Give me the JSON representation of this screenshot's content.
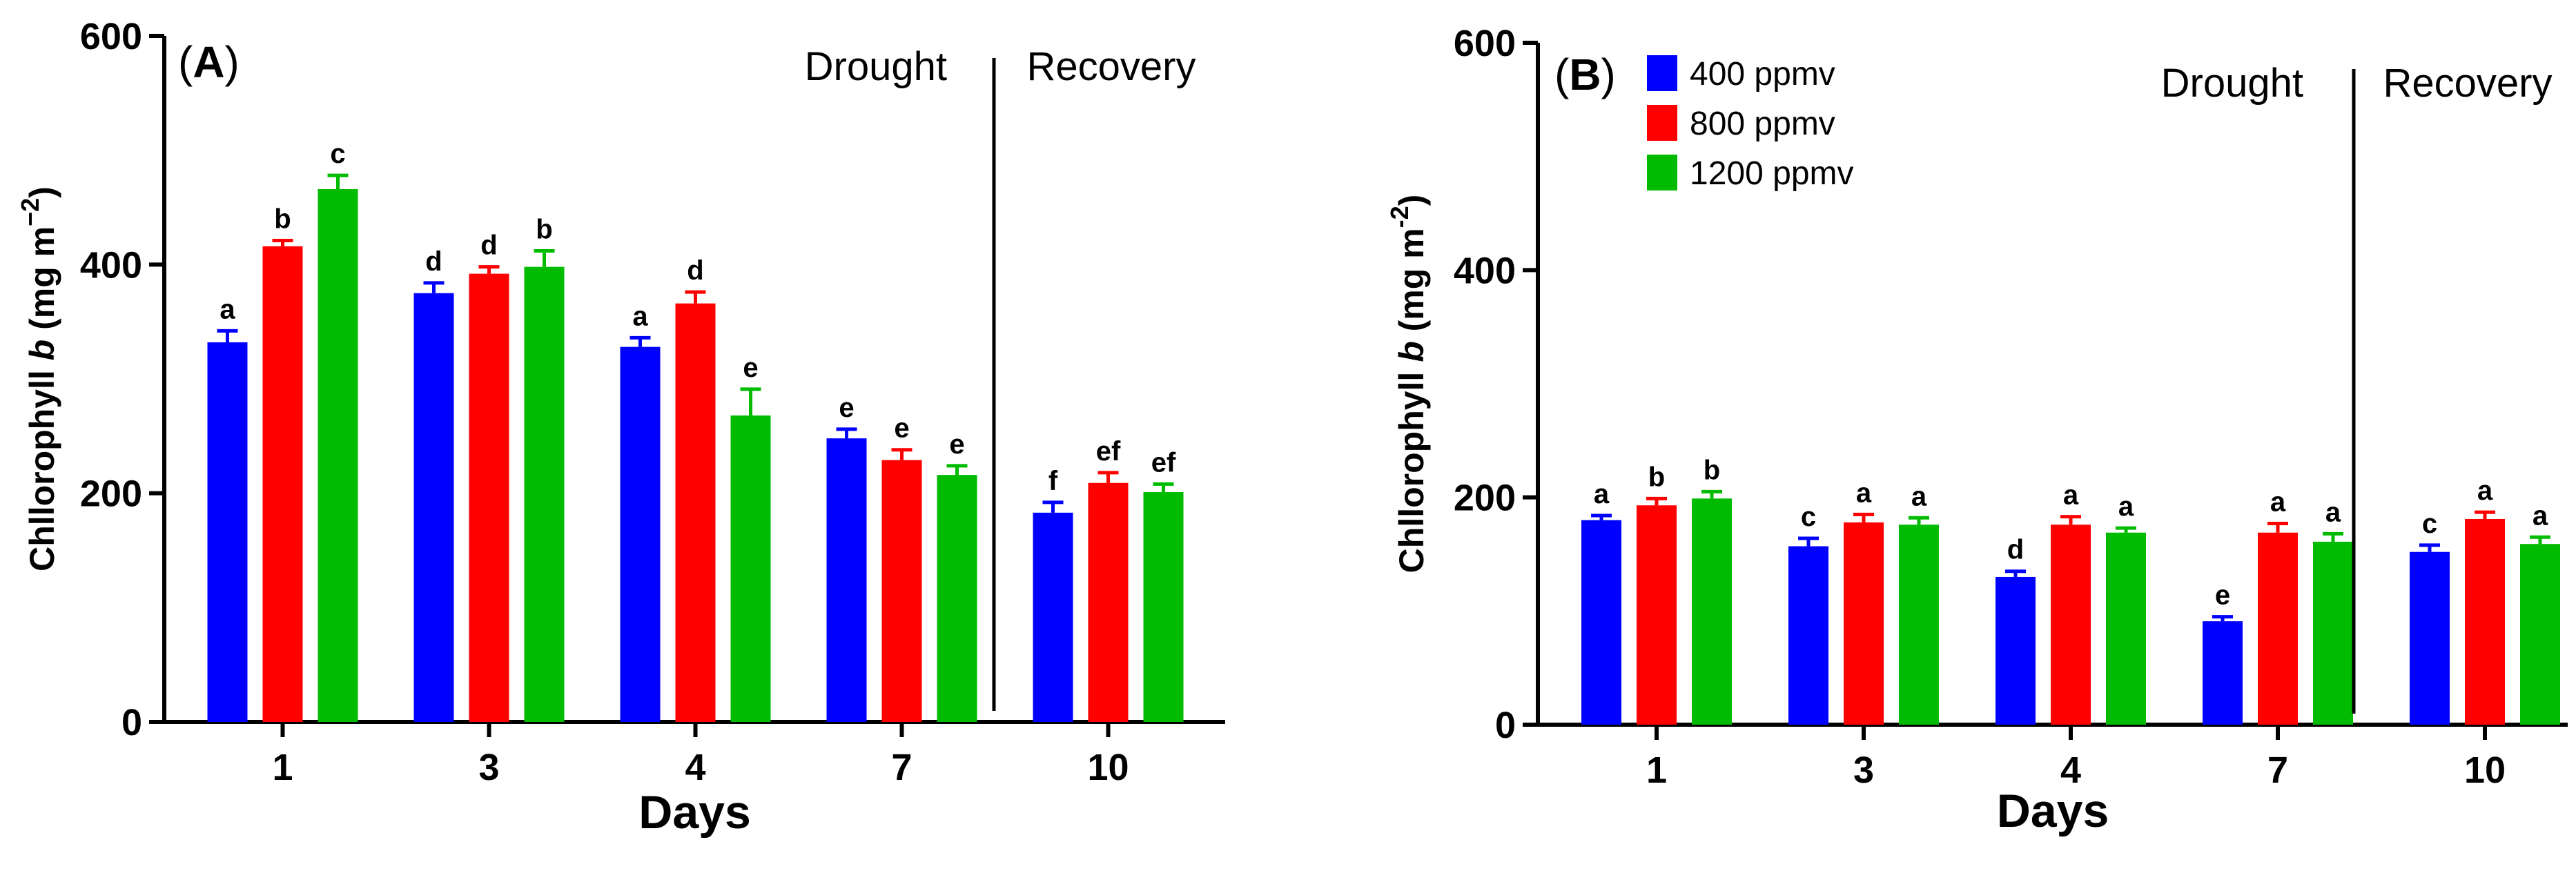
{
  "chart_data": [
    {
      "type": "bar",
      "panel_label": "A",
      "xlabel": "Days",
      "ylabel": {
        "prefix": "Chllorophyll ",
        "italic": "b",
        "suffix": " (mg m",
        "sup": "−2",
        "close": ")"
      },
      "ylim": [
        0,
        600
      ],
      "yticks": [
        0,
        200,
        400,
        600
      ],
      "categories": [
        "1",
        "3",
        "4",
        "7",
        "10"
      ],
      "regions": [
        {
          "label": "Drought",
          "categories": [
            "1",
            "3",
            "4",
            "7"
          ]
        },
        {
          "label": "Recovery",
          "categories": [
            "10"
          ]
        }
      ],
      "legend": false,
      "series": [
        {
          "name": "400 ppmv",
          "color": "#0000ff",
          "values": [
            332,
            375,
            328,
            248,
            183
          ],
          "errors": [
            10,
            9,
            8,
            8,
            9
          ],
          "letters": [
            "a",
            "d",
            "a",
            "e",
            "f"
          ]
        },
        {
          "name": "800 ppmv",
          "color": "#ff0000",
          "values": [
            416,
            392,
            366,
            229,
            209
          ],
          "errors": [
            5,
            6,
            10,
            9,
            9
          ],
          "letters": [
            "b",
            "d",
            "d",
            "e",
            "ef"
          ]
        },
        {
          "name": "1200 ppmv",
          "color": "#00bb00",
          "values": [
            466,
            398,
            268,
            216,
            201
          ],
          "errors": [
            12,
            14,
            23,
            8,
            7
          ],
          "letters": [
            "c",
            "b",
            "e",
            "e",
            "ef"
          ]
        }
      ]
    },
    {
      "type": "bar",
      "panel_label": "B",
      "xlabel": "Days",
      "ylabel": {
        "prefix": "Chllorophyll ",
        "italic": "b",
        "suffix": " (mg m",
        "sup": "-2",
        "close": ")"
      },
      "ylim": [
        0,
        600
      ],
      "yticks": [
        0,
        200,
        400,
        600
      ],
      "categories": [
        "1",
        "3",
        "4",
        "7",
        "10"
      ],
      "regions": [
        {
          "label": "Drought",
          "categories": [
            "1",
            "3",
            "4",
            "7"
          ]
        },
        {
          "label": "Recovery",
          "categories": [
            "10"
          ]
        }
      ],
      "legend": true,
      "series": [
        {
          "name": "400 ppmv",
          "color": "#0000ff",
          "values": [
            180,
            157,
            130,
            91,
            152
          ],
          "errors": [
            4,
            7,
            5,
            4,
            6
          ],
          "letters": [
            "a",
            "c",
            "d",
            "e",
            "c"
          ]
        },
        {
          "name": "800 ppmv",
          "color": "#ff0000",
          "values": [
            193,
            178,
            176,
            169,
            181
          ],
          "errors": [
            6,
            7,
            7,
            8,
            6
          ],
          "letters": [
            "b",
            "a",
            "a",
            "a",
            "a"
          ]
        },
        {
          "name": "1200 ppmv",
          "color": "#00bb00",
          "values": [
            199,
            176,
            169,
            161,
            159
          ],
          "errors": [
            6,
            6,
            4,
            7,
            6
          ],
          "letters": [
            "b",
            "a",
            "a",
            "a",
            "a"
          ]
        }
      ]
    }
  ]
}
